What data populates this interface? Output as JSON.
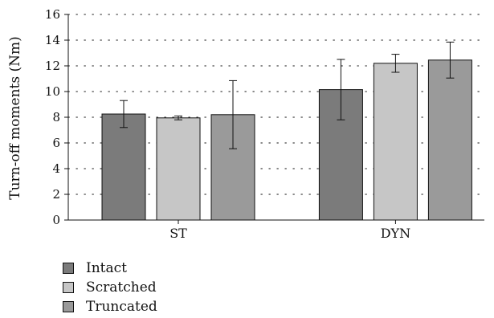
{
  "chart_data": {
    "type": "bar",
    "categories": [
      "ST",
      "DYN"
    ],
    "ylabel": "Turn-off moments (Nm)",
    "ylim": [
      0,
      16
    ],
    "yticks": [
      0,
      2,
      4,
      6,
      8,
      10,
      12,
      14,
      16
    ],
    "grid": "horizontal dotted",
    "legend_position": "bottom-left",
    "series": [
      {
        "name": "Intact",
        "color": "#7b7b7b",
        "values": [
          8.25,
          10.15
        ],
        "errors": [
          1.05,
          2.35
        ]
      },
      {
        "name": "Scratched",
        "color": "#c6c6c6",
        "values": [
          7.95,
          12.2
        ],
        "errors": [
          0.15,
          0.7
        ]
      },
      {
        "name": "Truncated",
        "color": "#9a9a9a",
        "values": [
          8.2,
          12.45
        ],
        "errors": [
          2.65,
          1.4
        ]
      }
    ]
  }
}
